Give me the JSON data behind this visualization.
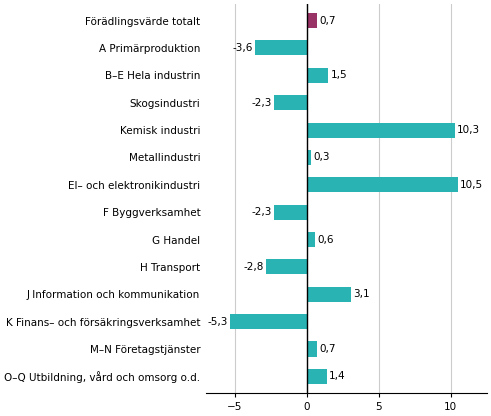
{
  "categories": [
    "Förädlingsvärde totalt",
    "A Primärproduktion",
    "B–E Hela industrin",
    "Skogsindustri",
    "Kemisk industri",
    "Metallindustri",
    "El– och elektronikindustri",
    "F Byggverksamhet",
    "G Handel",
    "H Transport",
    "J Information och kommunikation",
    "K Finans– och försäkringsverksamhet",
    "M–N Företagstjänster",
    "O–Q Utbildning, vård och omsorg o.d."
  ],
  "values": [
    0.7,
    -3.6,
    1.5,
    -2.3,
    10.3,
    0.3,
    10.5,
    -2.3,
    0.6,
    -2.8,
    3.1,
    -5.3,
    0.7,
    1.4
  ],
  "bar_color_default": "#2ab3b3",
  "bar_color_special": "#993366",
  "special_index": 0,
  "xlim": [
    -7,
    12.5
  ],
  "xticks": [
    -5,
    0,
    5,
    10
  ],
  "grid_color": "#cccccc",
  "background_color": "#ffffff",
  "label_fontsize": 7.5,
  "value_fontsize": 7.5,
  "bar_height": 0.55
}
